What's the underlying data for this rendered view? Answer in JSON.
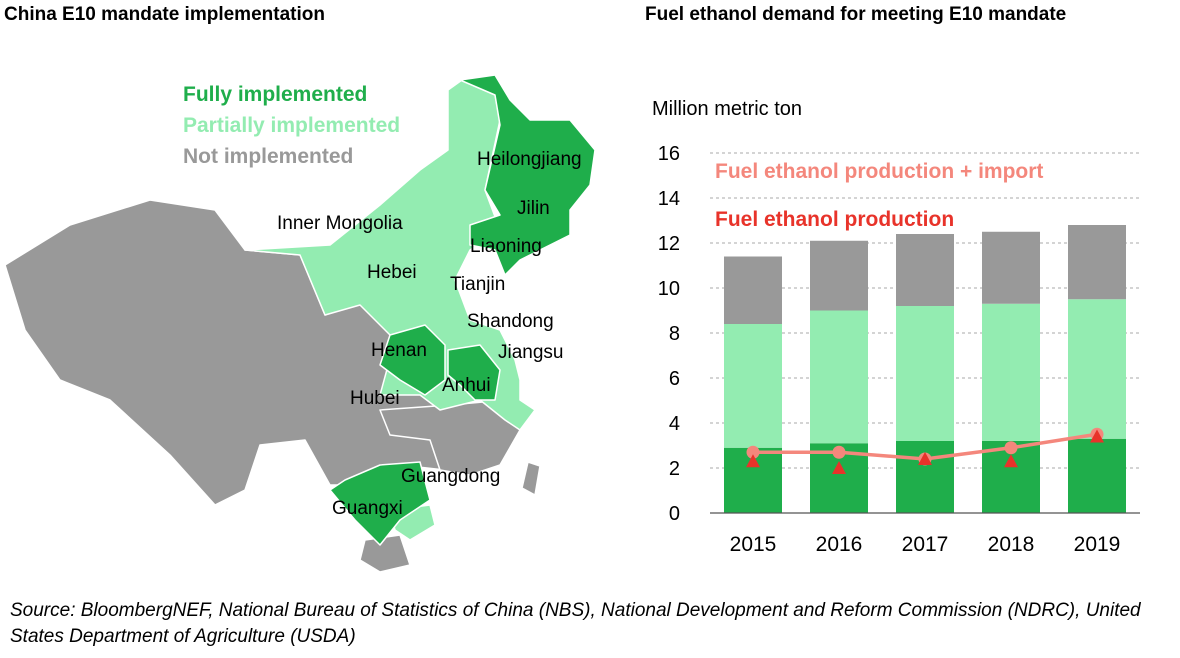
{
  "map": {
    "title": "China E10 mandate implementation",
    "legend": [
      {
        "label": "Fully implemented",
        "color": "#1fae4b"
      },
      {
        "label": "Partially implemented",
        "color": "#93ecb1"
      },
      {
        "label": "Not implemented",
        "color": "#999999"
      }
    ],
    "provinces": {
      "heilongjiang": "Heilongjiang",
      "jilin": "Jilin",
      "liaoning": "Liaoning",
      "inner_mongolia": "Inner Mongolia",
      "hebei": "Hebei",
      "tianjin": "Tianjin",
      "shandong": "Shandong",
      "henan": "Henan",
      "jiangsu": "Jiangsu",
      "anhui": "Anhui",
      "hubei": "Hubei",
      "guangdong": "Guangdong",
      "guangxi": "Guangxi"
    }
  },
  "source": "Source: BloombergNEF, National Bureau of Statistics of China (NBS), National Development and Reform Commission (NDRC), United States Department of Agriculture (USDA)",
  "chart_data": {
    "type": "bar",
    "title": "Fuel ethanol demand for meeting E10 mandate",
    "ylabel": "Million metric ton",
    "xlabel": "",
    "ylim": [
      0,
      16
    ],
    "yticks": [
      0,
      2,
      4,
      6,
      8,
      10,
      12,
      14,
      16
    ],
    "grid": true,
    "categories": [
      "2015",
      "2016",
      "2017",
      "2018",
      "2019"
    ],
    "stacked_series": [
      {
        "name": "Fully implemented",
        "color": "#1fae4b",
        "values": [
          2.9,
          3.1,
          3.2,
          3.2,
          3.3
        ]
      },
      {
        "name": "Partially implemented",
        "color": "#93ecb1",
        "values": [
          5.5,
          5.9,
          6.0,
          6.1,
          6.2
        ]
      },
      {
        "name": "Not implemented",
        "color": "#999999",
        "values": [
          3.0,
          3.1,
          3.2,
          3.2,
          3.3
        ]
      }
    ],
    "line_series": [
      {
        "name": "Fuel ethanol production + import",
        "color": "#f4877c",
        "marker": "circle",
        "values": [
          2.7,
          2.7,
          2.4,
          2.9,
          3.5
        ]
      },
      {
        "name": "Fuel ethanol production",
        "color": "#e8332a",
        "marker": "triangle",
        "values": [
          2.3,
          2.0,
          2.4,
          2.3,
          3.4
        ]
      }
    ]
  }
}
